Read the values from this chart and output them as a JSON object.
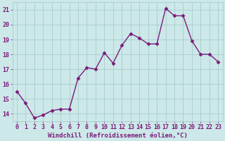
{
  "x": [
    0,
    1,
    2,
    3,
    4,
    5,
    6,
    7,
    8,
    9,
    10,
    11,
    12,
    13,
    14,
    15,
    16,
    17,
    18,
    19,
    20,
    21,
    22,
    23
  ],
  "y": [
    15.5,
    14.7,
    13.7,
    13.9,
    14.2,
    14.3,
    14.3,
    16.4,
    17.1,
    17.0,
    18.1,
    17.4,
    18.6,
    19.4,
    19.1,
    18.7,
    18.7,
    21.1,
    20.6,
    20.6,
    18.9,
    18.0,
    18.0,
    17.5
  ],
  "line_color": "#7b1a7b",
  "marker": "D",
  "marker_size": 2.5,
  "bg_color": "#cce8e8",
  "grid_color": "#aacccc",
  "xlabel": "Windchill (Refroidissement éolien,°C)",
  "xlim": [
    -0.5,
    23.5
  ],
  "ylim": [
    13.5,
    21.5
  ],
  "yticks": [
    14,
    15,
    16,
    17,
    18,
    19,
    20,
    21
  ],
  "xticks": [
    0,
    1,
    2,
    3,
    4,
    5,
    6,
    7,
    8,
    9,
    10,
    11,
    12,
    13,
    14,
    15,
    16,
    17,
    18,
    19,
    20,
    21,
    22,
    23
  ],
  "label_fontsize": 6.5,
  "tick_fontsize": 6.0,
  "line_width": 1.0
}
